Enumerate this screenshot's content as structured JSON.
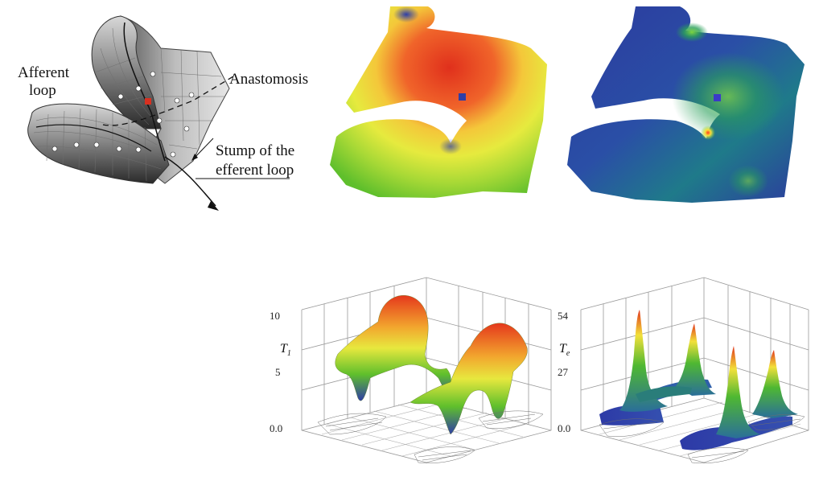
{
  "panel_a": {
    "labels": {
      "afferent_line1": "Afferent",
      "afferent_line2": "loop",
      "anastomosis": "Anastomosis",
      "stump_line1": "Stump of the",
      "stump_line2": "efferent loop"
    }
  },
  "panel_plot1": {
    "axis_label": "T",
    "axis_subscript": "1",
    "ticks": [
      "10",
      "5",
      "0.0"
    ]
  },
  "panel_plot2": {
    "axis_label": "T",
    "axis_subscript": "e",
    "ticks": [
      "54",
      "27",
      "0.0"
    ]
  },
  "colors": {
    "high": "#e23a1e",
    "mid": "#f1e23a",
    "green": "#6cc52c",
    "low": "#2f3da7"
  }
}
